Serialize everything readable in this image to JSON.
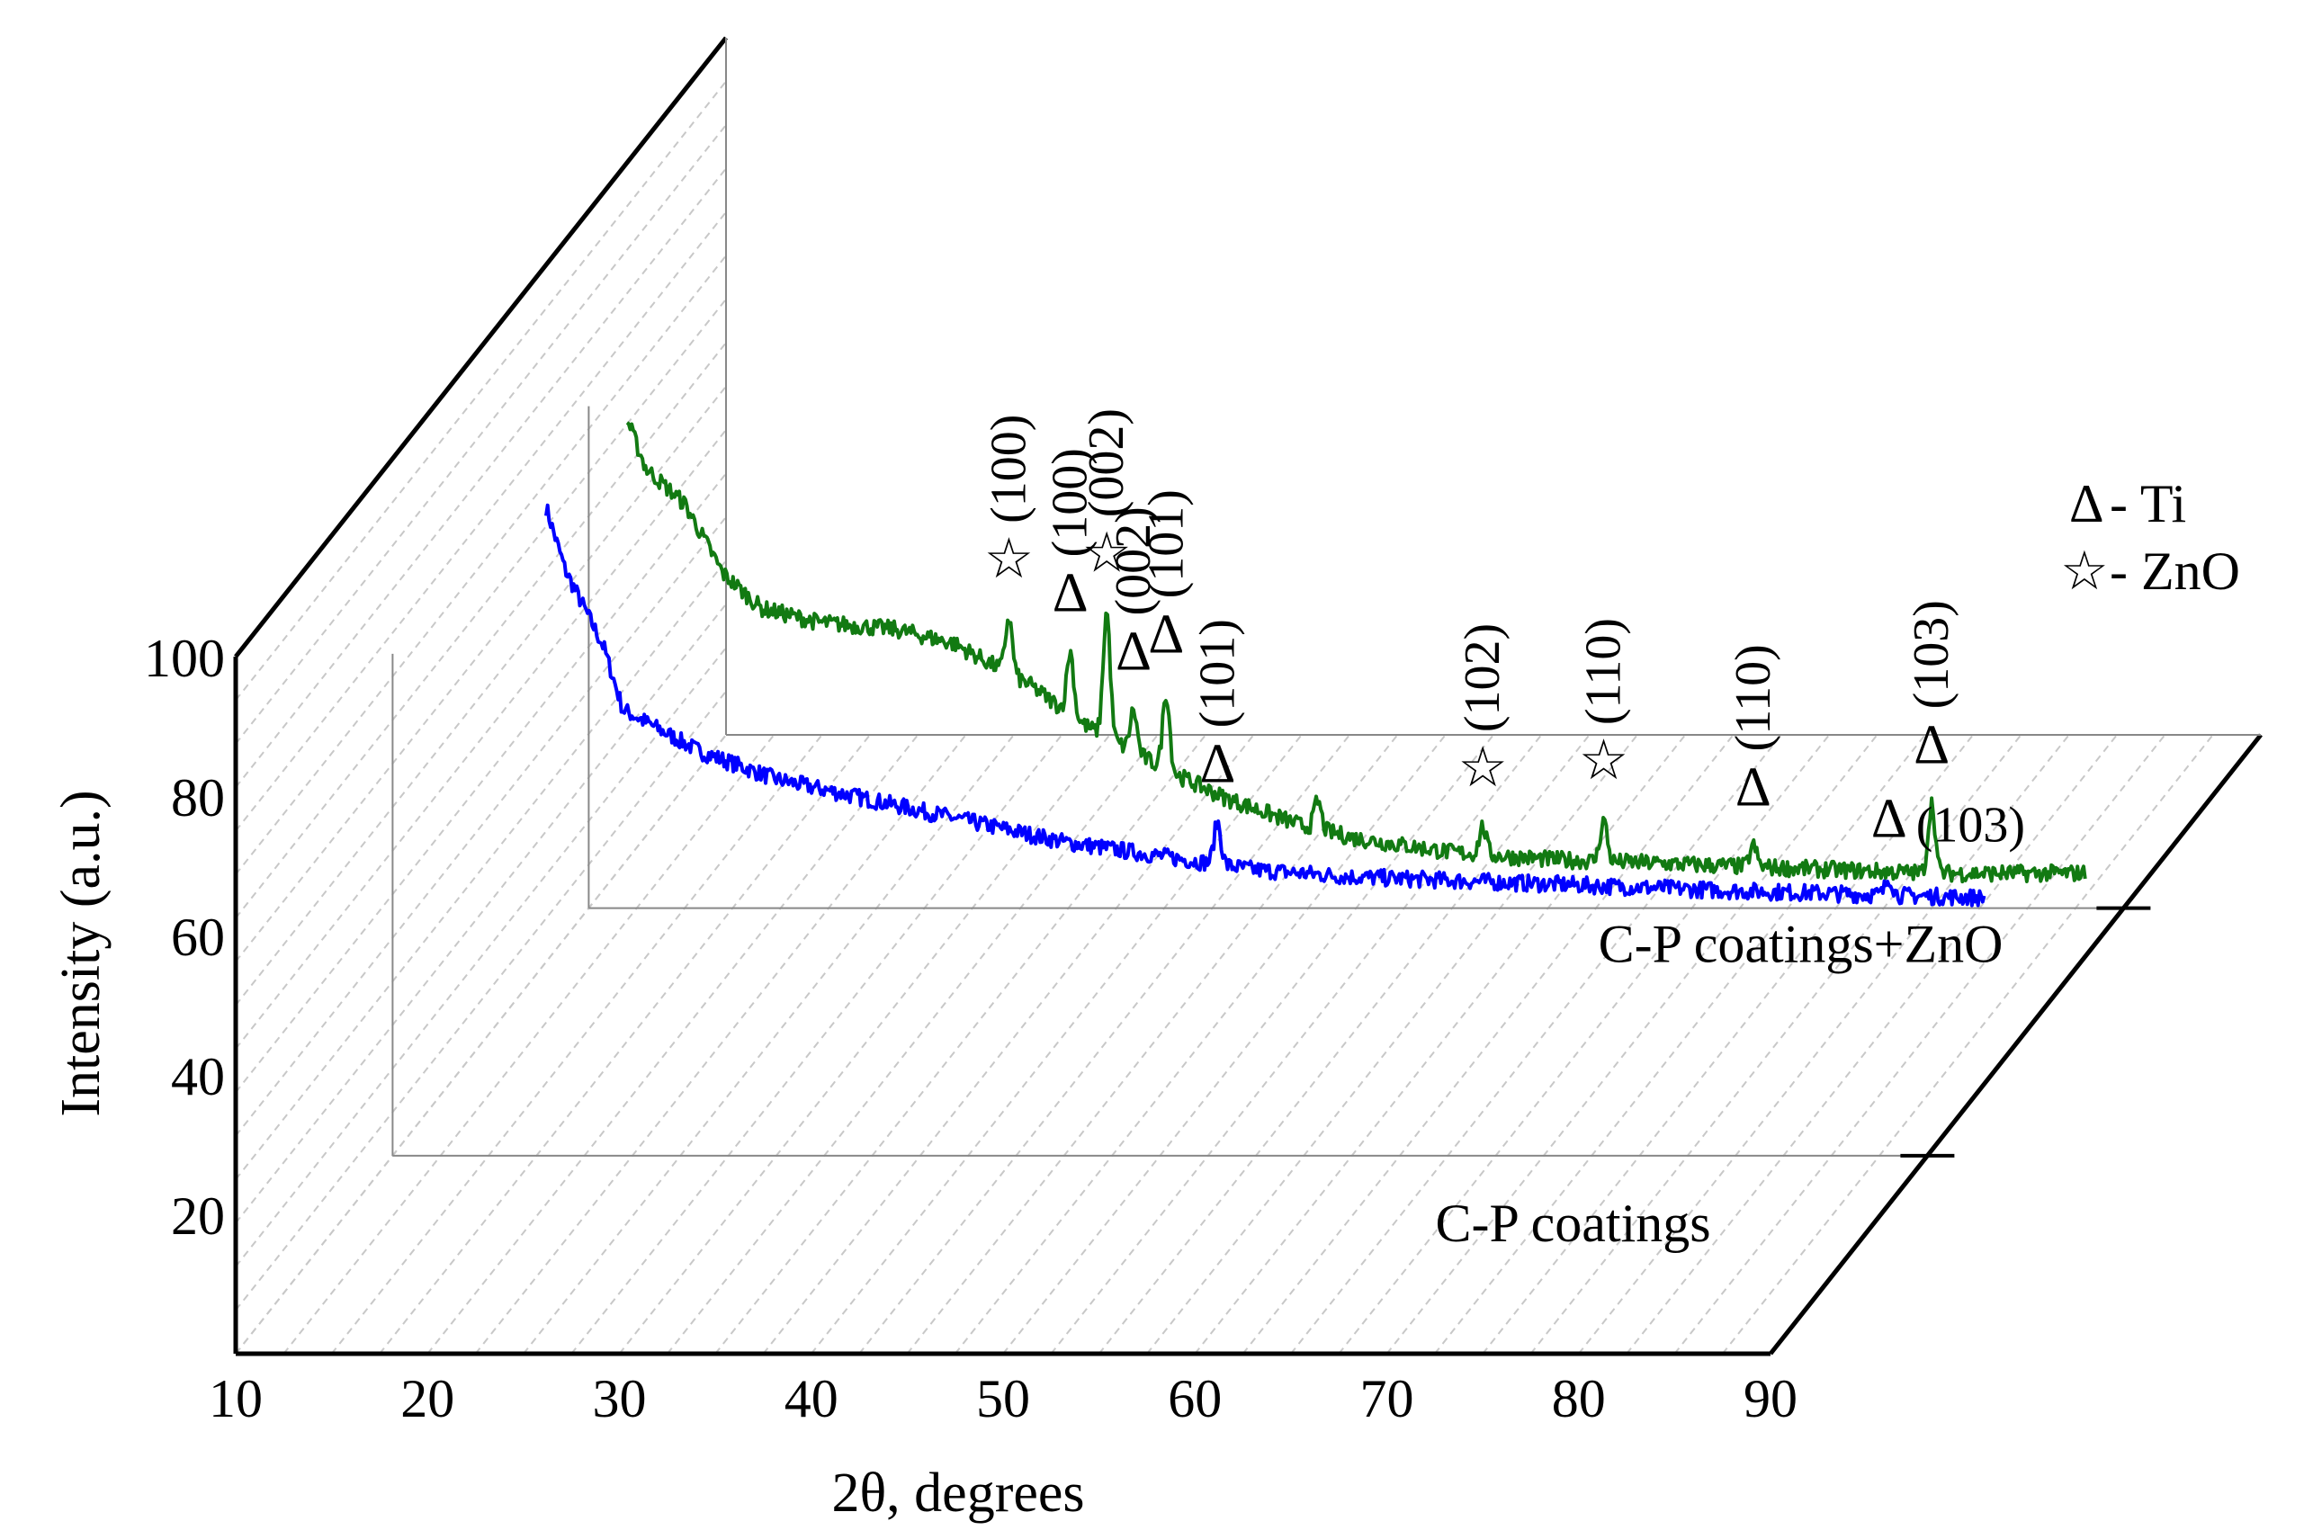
{
  "chart_data": {
    "type": "line",
    "style": "3d-stacked (waterfall) XRD patterns",
    "xlabel": "2θ, degrees",
    "ylabel": "Intensity (a.u.)",
    "xlim": [
      10,
      90
    ],
    "ylim": [
      0,
      100
    ],
    "x_ticks": [
      "10",
      "20",
      "30",
      "40",
      "50",
      "60",
      "70",
      "80",
      "90"
    ],
    "y_ticks": [
      "20",
      "40",
      "60",
      "80",
      "100"
    ],
    "legend": {
      "ti": {
        "symbol": "Δ",
        "label": "- Ti"
      },
      "zno": {
        "symbol": "☆",
        "label": "- ZnO"
      }
    },
    "series": [
      {
        "name": "C-P coatings",
        "color": "#0000ff",
        "x_range": [
          18,
          93
        ],
        "baseline": [
          [
            18,
            93
          ],
          [
            19,
            84
          ],
          [
            21,
            73
          ],
          [
            22,
            64
          ],
          [
            26,
            58
          ],
          [
            30,
            54
          ],
          [
            35,
            51
          ],
          [
            40,
            48
          ],
          [
            45,
            45
          ],
          [
            50,
            43
          ],
          [
            55,
            41
          ],
          [
            60,
            40
          ],
          [
            70,
            39
          ],
          [
            80,
            38
          ],
          [
            93,
            37
          ]
        ],
        "peaks": [
          {
            "x": 53.0,
            "height": 6,
            "phase": "Ti",
            "marker": "Δ",
            "label": "(101)"
          },
          {
            "x": 88.0,
            "height": 2.5,
            "phase": "Ti",
            "marker": "Δ",
            "label": "(103)"
          }
        ]
      },
      {
        "name": "C-P coatings+ZnO",
        "color": "#127a12",
        "x_range": [
          12,
          88
        ],
        "baseline": [
          [
            12,
            70
          ],
          [
            13,
            63
          ],
          [
            15,
            58
          ],
          [
            17,
            48
          ],
          [
            19,
            43
          ],
          [
            22,
            41
          ],
          [
            26,
            40
          ],
          [
            29,
            38
          ],
          [
            33,
            32
          ],
          [
            36,
            26
          ],
          [
            40,
            20
          ],
          [
            43,
            16
          ],
          [
            47,
            12
          ],
          [
            50,
            10
          ],
          [
            55,
            8
          ],
          [
            60,
            7
          ],
          [
            70,
            6
          ],
          [
            80,
            5
          ],
          [
            88,
            5
          ]
        ],
        "peaks": [
          {
            "x": 31.9,
            "height": 8,
            "phase": "ZnO",
            "marker": "☆",
            "label": "(100)"
          },
          {
            "x": 35.1,
            "height": 9,
            "phase": "Ti",
            "marker": "Δ",
            "label": "(100)"
          },
          {
            "x": 37.0,
            "height": 18,
            "phase": "ZnO",
            "marker": "☆",
            "label": "(002)"
          },
          {
            "x": 38.4,
            "height": 6,
            "phase": "Ti",
            "marker": "Δ",
            "label": "(002)"
          },
          {
            "x": 40.1,
            "height": 11,
            "phase": "Ti",
            "marker": "Δ",
            "label": "(101)"
          },
          {
            "x": 48.0,
            "height": 4,
            "phase": "",
            "marker": "",
            "label": ""
          },
          {
            "x": 56.6,
            "height": 4,
            "phase": "ZnO",
            "marker": "☆",
            "label": "(102)"
          },
          {
            "x": 62.9,
            "height": 6,
            "phase": "ZnO",
            "marker": "☆",
            "label": "(110)"
          },
          {
            "x": 70.7,
            "height": 3,
            "phase": "Ti",
            "marker": "Δ",
            "label": "(110)"
          },
          {
            "x": 80.0,
            "height": 10,
            "phase": "Ti",
            "marker": "Δ",
            "label": "(103)"
          }
        ]
      }
    ]
  }
}
